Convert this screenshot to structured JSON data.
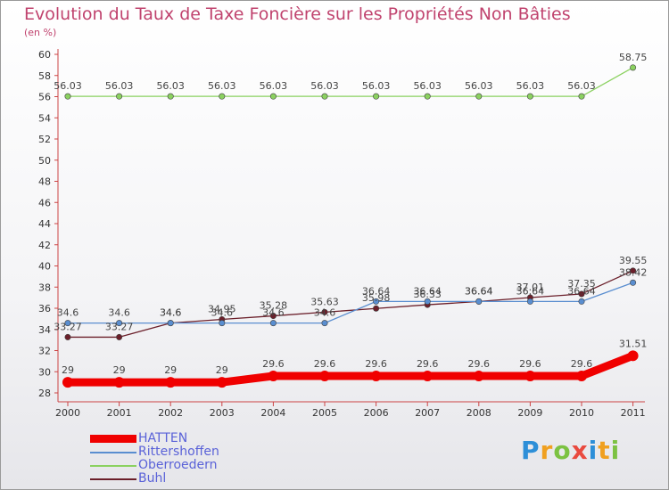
{
  "title": "Evolution du Taux de Taxe Foncière sur les Propriétés Non Bâties",
  "subtitle": "(en %)",
  "logo": {
    "letters": [
      "P",
      "r",
      "o",
      "x",
      "i",
      "t",
      "i"
    ],
    "colors": [
      "#2d8fd8",
      "#f0a020",
      "#7cc242",
      "#e94a3f",
      "#2d8fd8",
      "#f0a020",
      "#7cc242"
    ]
  },
  "chart_data": {
    "type": "line",
    "title": "Evolution du Taux de Taxe Foncière sur les Propriétés Non Bâties",
    "ylabel": "(en %)",
    "xlabel": "",
    "ylim": [
      28,
      60
    ],
    "yticks": [
      28,
      30,
      32,
      34,
      36,
      38,
      40,
      42,
      44,
      46,
      48,
      50,
      52,
      54,
      56,
      58,
      60
    ],
    "categories": [
      "2000",
      "2001",
      "2002",
      "2003",
      "2004",
      "2005",
      "2006",
      "2007",
      "2008",
      "2009",
      "2010",
      "2011"
    ],
    "series": [
      {
        "name": "Buhl",
        "color": "#6b1f2a",
        "values": [
          33.27,
          33.27,
          34.6,
          34.95,
          35.28,
          35.63,
          35.98,
          36.33,
          36.64,
          37.01,
          37.35,
          39.55
        ],
        "labels": [
          "33.27",
          "33.27",
          "34.6",
          "34.95",
          "35.28",
          "35.63",
          "35.98",
          "36.33",
          "36.64",
          "37.01",
          "37.35",
          "39.55"
        ]
      },
      {
        "name": "Rittershoffen",
        "color": "#5a8ed0",
        "values": [
          34.6,
          34.6,
          34.6,
          34.6,
          34.6,
          34.6,
          36.64,
          36.64,
          36.64,
          36.64,
          36.64,
          38.42
        ],
        "labels": [
          "34.6",
          "34.6",
          "34.6",
          "34.6",
          "34.6",
          "34.6",
          "36.64",
          "36.64",
          "36.64",
          "36.64",
          "36.64",
          "38.42"
        ]
      },
      {
        "name": "Oberroedern",
        "color": "#8bd160",
        "values": [
          56.03,
          56.03,
          56.03,
          56.03,
          56.03,
          56.03,
          56.03,
          56.03,
          56.03,
          56.03,
          56.03,
          58.75
        ],
        "labels": [
          "56.03",
          "56.03",
          "56.03",
          "56.03",
          "56.03",
          "56.03",
          "56.03",
          "56.03",
          "56.03",
          "56.03",
          "56.03",
          "58.75"
        ]
      },
      {
        "name": "HATTEN",
        "color": "#f00000",
        "values": [
          29,
          29,
          29,
          29,
          29.6,
          29.6,
          29.6,
          29.6,
          29.6,
          29.6,
          29.6,
          31.51
        ],
        "labels": [
          "29",
          "29",
          "29",
          "29",
          "29.6",
          "29.6",
          "29.6",
          "29.6",
          "29.6",
          "29.6",
          "29.6",
          "31.51"
        ]
      }
    ],
    "legend": [
      "HATTEN",
      "Rittershoffen",
      "Oberroedern",
      "Buhl"
    ],
    "legend_position": "bottom-left",
    "grid": false
  }
}
